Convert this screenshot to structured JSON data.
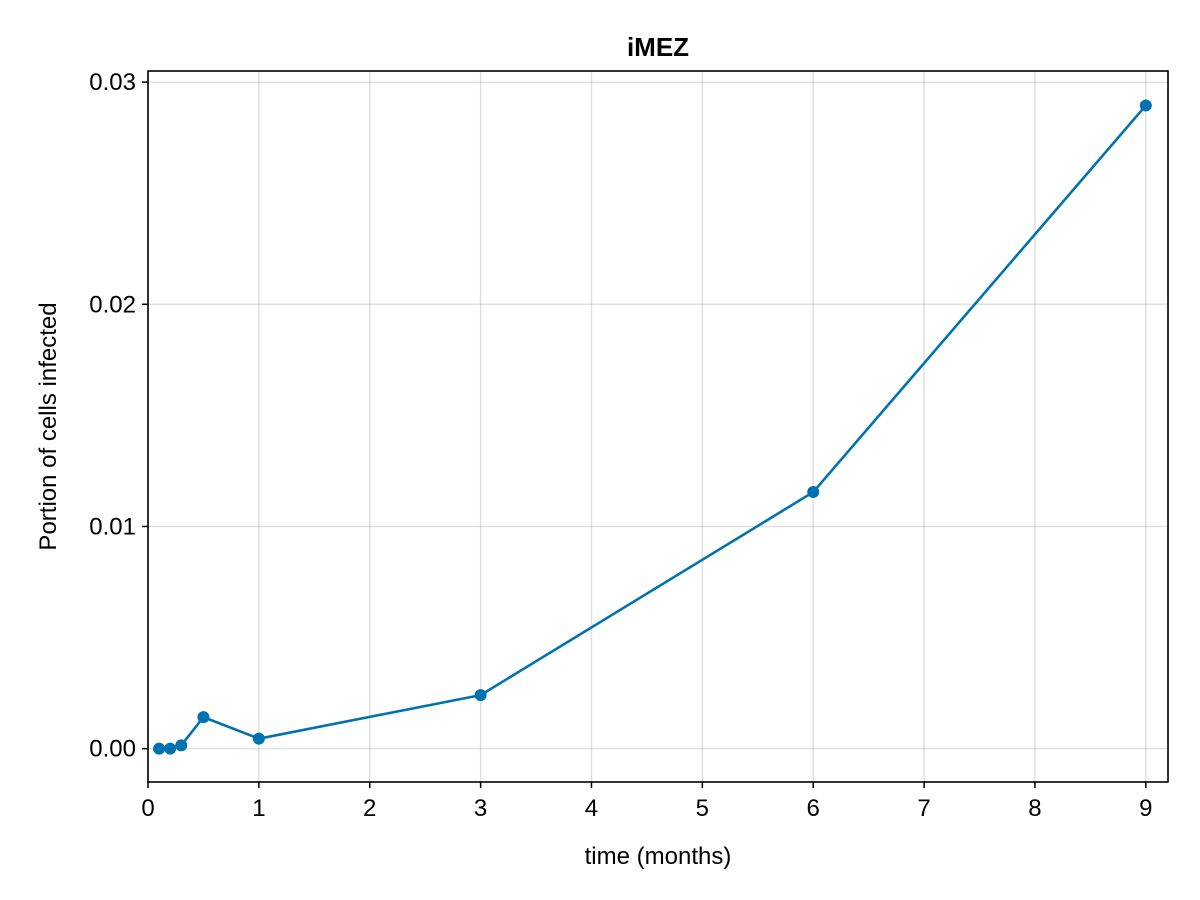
{
  "chart_data": {
    "type": "line",
    "title": "iMEZ",
    "xlabel": "time (months)",
    "ylabel": "Portion of cells infected",
    "xlim": [
      0,
      9.2
    ],
    "ylim": [
      -0.0015,
      0.0305
    ],
    "xticks": [
      0,
      1,
      2,
      3,
      4,
      5,
      6,
      7,
      8,
      9
    ],
    "xtick_labels": [
      "0",
      "1",
      "2",
      "3",
      "4",
      "5",
      "6",
      "7",
      "8",
      "9"
    ],
    "yticks": [
      0.0,
      0.01,
      0.02,
      0.03
    ],
    "ytick_labels": [
      "0.00",
      "0.01",
      "0.02",
      "0.03"
    ],
    "grid": true,
    "series": [
      {
        "name": "iMEZ",
        "color": "#0072b2",
        "marker": "circle",
        "x": [
          0.1,
          0.2,
          0.3,
          0.5,
          1,
          3,
          6,
          9
        ],
        "y": [
          0.0,
          0.0,
          0.00015,
          0.00142,
          0.00045,
          0.00241,
          0.01155,
          0.02895
        ]
      }
    ]
  }
}
